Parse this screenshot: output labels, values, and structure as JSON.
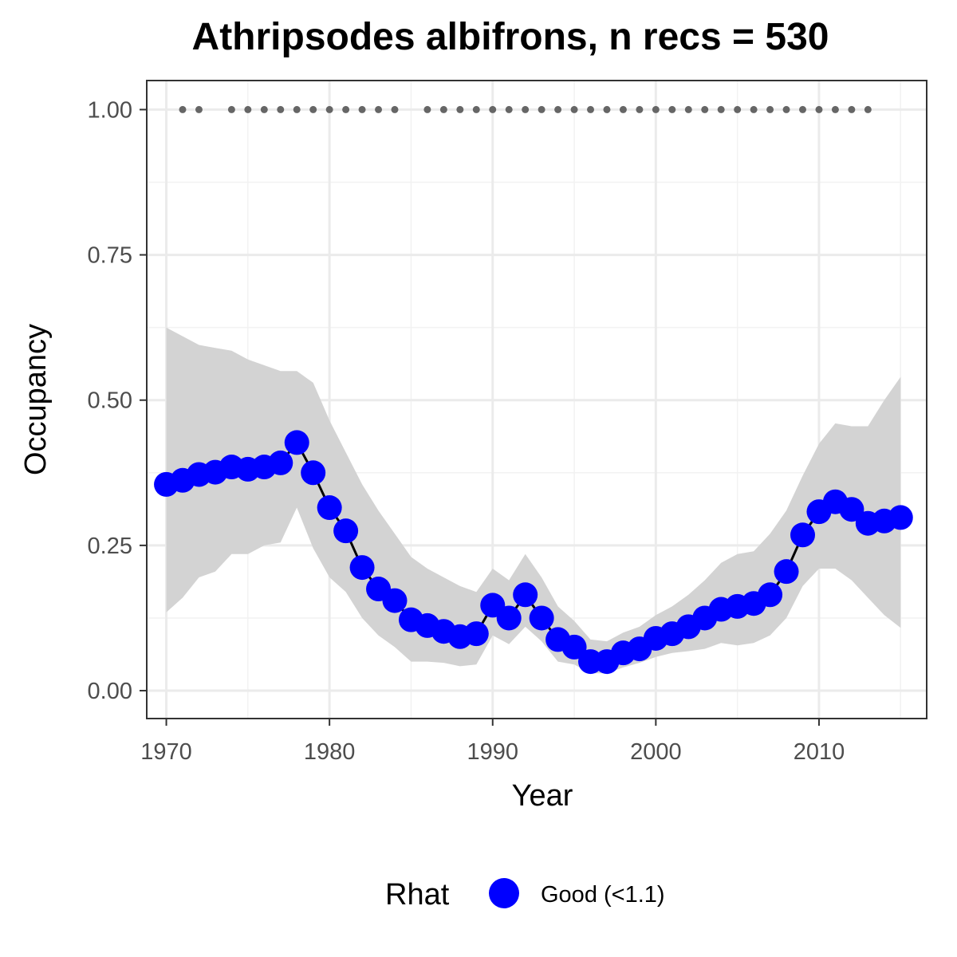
{
  "chart_data": {
    "type": "line",
    "title": "Athripsodes albifrons, n recs = 530",
    "xlabel": "Year",
    "ylabel": "Occupancy",
    "xlim": [
      1968.8,
      2016.6
    ],
    "ylim": [
      -0.048,
      1.05
    ],
    "x_ticks": [
      1970,
      1980,
      1990,
      2000,
      2010
    ],
    "x_tick_labels": [
      "1970",
      "1980",
      "1990",
      "2000",
      "2010"
    ],
    "y_ticks": [
      0,
      0.25,
      0.5,
      0.75,
      1.0
    ],
    "y_tick_labels": [
      "0.00",
      "0.25",
      "0.50",
      "0.75",
      "1.00"
    ],
    "grid": true,
    "series": [
      {
        "x": [
          1970,
          1971,
          1972,
          1973,
          1974,
          1975,
          1976,
          1977,
          1978,
          1979,
          1980,
          1981,
          1982,
          1983,
          1984,
          1985,
          1986,
          1987,
          1988,
          1989,
          1990,
          1991,
          1992,
          1993,
          1994,
          1995,
          1996,
          1997,
          1998,
          1999,
          2000,
          2001,
          2002,
          2003,
          2004,
          2005,
          2006,
          2007,
          2008,
          2009,
          2010,
          2011,
          2012,
          2013,
          2014,
          2015
        ],
        "values": [
          0.355,
          0.362,
          0.372,
          0.376,
          0.385,
          0.381,
          0.385,
          0.392,
          0.427,
          0.375,
          0.315,
          0.275,
          0.212,
          0.175,
          0.155,
          0.122,
          0.112,
          0.102,
          0.093,
          0.098,
          0.147,
          0.125,
          0.165,
          0.125,
          0.088,
          0.075,
          0.05,
          0.05,
          0.065,
          0.072,
          0.09,
          0.098,
          0.11,
          0.125,
          0.14,
          0.145,
          0.15,
          0.165,
          0.205,
          0.268,
          0.308,
          0.325,
          0.312,
          0.288,
          0.292,
          0.298
        ],
        "lower": [
          0.135,
          0.16,
          0.195,
          0.205,
          0.235,
          0.235,
          0.25,
          0.255,
          0.315,
          0.245,
          0.195,
          0.17,
          0.125,
          0.095,
          0.075,
          0.05,
          0.05,
          0.048,
          0.042,
          0.045,
          0.095,
          0.08,
          0.11,
          0.085,
          0.05,
          0.045,
          0.03,
          0.03,
          0.04,
          0.048,
          0.058,
          0.065,
          0.068,
          0.072,
          0.082,
          0.078,
          0.082,
          0.095,
          0.125,
          0.18,
          0.21,
          0.21,
          0.19,
          0.16,
          0.13,
          0.108
        ],
        "upper": [
          0.625,
          0.61,
          0.595,
          0.59,
          0.585,
          0.57,
          0.56,
          0.55,
          0.55,
          0.53,
          0.465,
          0.41,
          0.355,
          0.31,
          0.27,
          0.23,
          0.21,
          0.195,
          0.18,
          0.17,
          0.21,
          0.19,
          0.235,
          0.195,
          0.145,
          0.12,
          0.088,
          0.085,
          0.1,
          0.11,
          0.13,
          0.145,
          0.165,
          0.19,
          0.22,
          0.235,
          0.24,
          0.27,
          0.31,
          0.37,
          0.425,
          0.46,
          0.455,
          0.455,
          0.5,
          0.54
        ],
        "color": "#0000ff",
        "line_color": "#000000",
        "ribbon_color": "#d3d3d3"
      }
    ],
    "records": {
      "y": 1.0,
      "color": "#666666",
      "years": [
        1971,
        1972,
        1974,
        1975,
        1976,
        1977,
        1978,
        1979,
        1980,
        1981,
        1982,
        1983,
        1984,
        1986,
        1987,
        1988,
        1989,
        1990,
        1991,
        1992,
        1993,
        1994,
        1995,
        1996,
        1997,
        1998,
        1999,
        2000,
        2001,
        2002,
        2003,
        2004,
        2005,
        2006,
        2007,
        2008,
        2009,
        2010,
        2011,
        2012,
        2013
      ]
    },
    "legend": {
      "title": "Rhat",
      "position": "bottom",
      "entries": [
        {
          "label": "Good (<1.1)",
          "color": "#0000ff"
        }
      ]
    }
  }
}
